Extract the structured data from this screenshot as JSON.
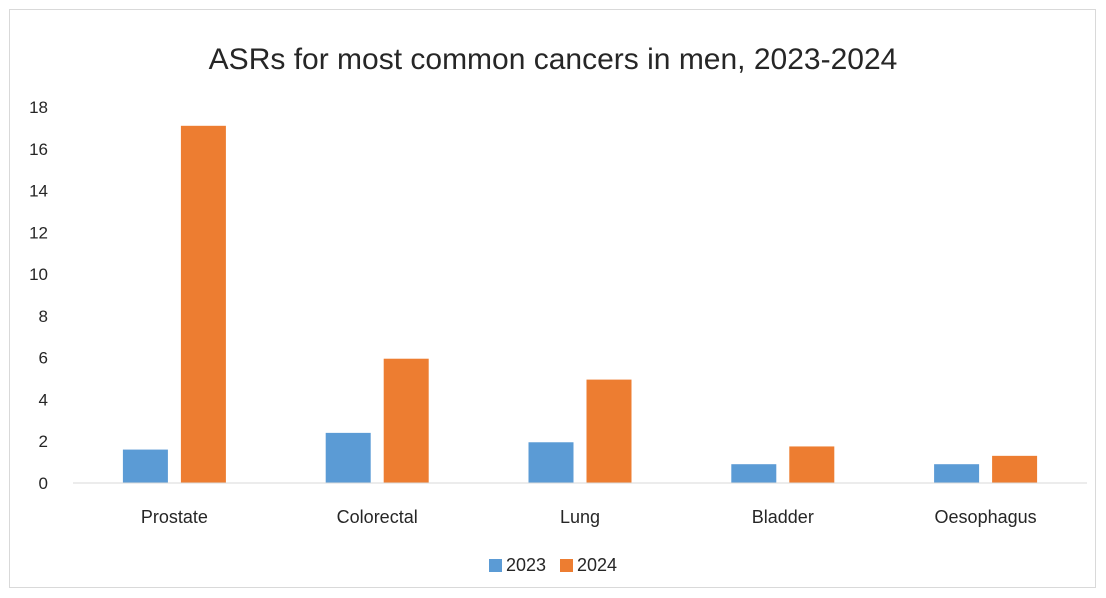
{
  "chart_data": {
    "type": "bar",
    "title": "ASRs for most common cancers in men, 2023-2024",
    "categories": [
      "Prostate",
      "Colorectal",
      "Lung",
      "Bladder",
      "Oesophagus"
    ],
    "series": [
      {
        "name": "2023",
        "color": "#5b9bd5",
        "values": [
          1.6,
          2.4,
          1.95,
          0.9,
          0.9
        ]
      },
      {
        "name": "2024",
        "color": "#ed7d31",
        "values": [
          17.1,
          5.95,
          4.95,
          1.75,
          1.3
        ]
      }
    ],
    "ylim": [
      0,
      18
    ],
    "yticks": [
      0,
      2,
      4,
      6,
      8,
      10,
      12,
      14,
      16,
      18
    ],
    "grid": false,
    "legend": "bottom"
  }
}
